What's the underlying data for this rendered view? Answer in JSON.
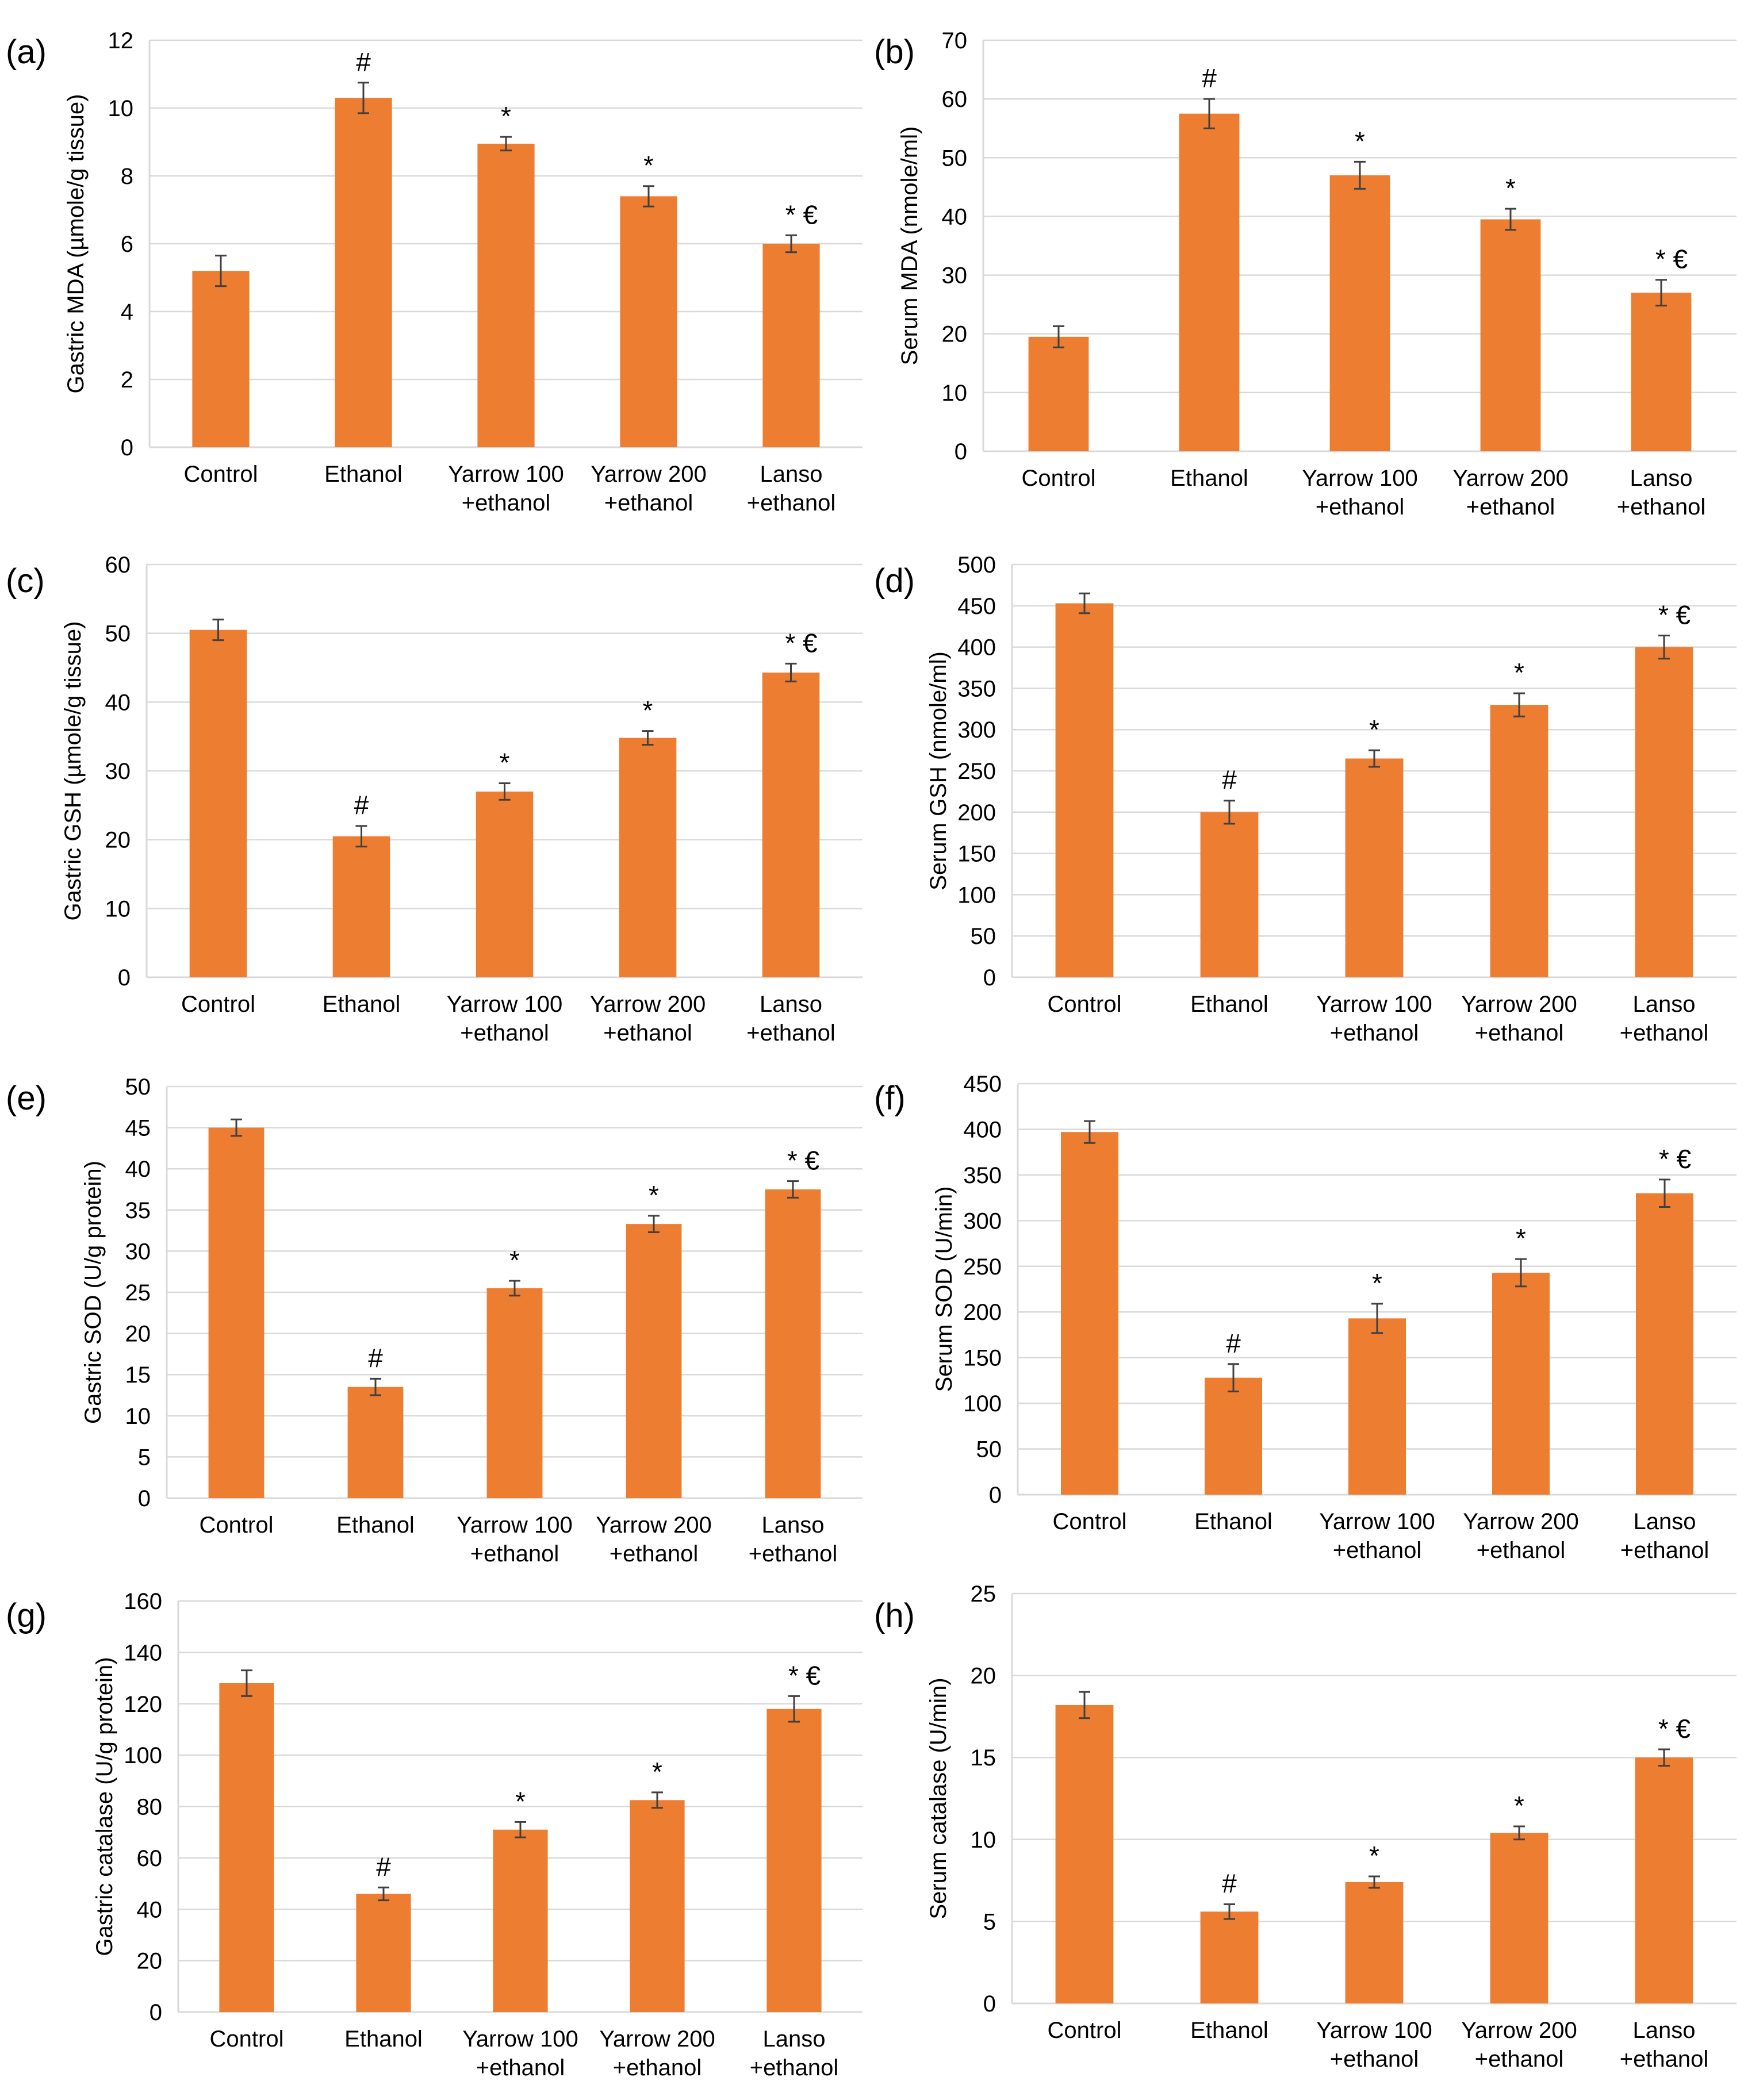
{
  "figure": {
    "categories": [
      "Control",
      "Ethanol",
      "Yarrow 100\n+ethanol",
      "Yarrow 200\n+ethanol",
      "Lanso\n+ethanol"
    ],
    "bar_color": "#ED7D31",
    "grid_color": "#D9D9D9",
    "text_color": "#000000"
  },
  "chart_data": [
    {
      "panel": "(a)",
      "type": "bar",
      "ylabel": "Gastric MDA (µmole/g tissue)",
      "ylim": [
        0,
        12
      ],
      "yticks": [
        0,
        2,
        4,
        6,
        8,
        10,
        12
      ],
      "values": [
        5.2,
        10.3,
        8.95,
        7.4,
        6.0
      ],
      "errors": [
        0.45,
        0.45,
        0.2,
        0.3,
        0.25
      ],
      "annotations": [
        "",
        "#",
        "*",
        "*",
        "* €"
      ]
    },
    {
      "panel": "(b)",
      "type": "bar",
      "ylabel": "Serum MDA (nmole/ml)",
      "ylim": [
        0,
        70
      ],
      "yticks": [
        0,
        10,
        20,
        30,
        40,
        50,
        60,
        70
      ],
      "values": [
        19.5,
        57.5,
        47,
        39.5,
        27
      ],
      "errors": [
        1.8,
        2.5,
        2.3,
        1.8,
        2.2
      ],
      "annotations": [
        "",
        "#",
        "*",
        "*",
        "* €"
      ]
    },
    {
      "panel": "(c)",
      "type": "bar",
      "ylabel": "Gastric GSH (µmole/g tissue)",
      "ylim": [
        0,
        60
      ],
      "yticks": [
        0,
        10,
        20,
        30,
        40,
        50,
        60
      ],
      "values": [
        50.5,
        20.5,
        27,
        34.8,
        44.3
      ],
      "errors": [
        1.5,
        1.5,
        1.2,
        1.0,
        1.3
      ],
      "annotations": [
        "",
        "#",
        "*",
        "*",
        "* €"
      ]
    },
    {
      "panel": "(d)",
      "type": "bar",
      "ylabel": "Serum GSH (nmole/ml)",
      "ylim": [
        0,
        500
      ],
      "yticks": [
        0,
        50,
        100,
        150,
        200,
        250,
        300,
        350,
        400,
        450,
        500
      ],
      "values": [
        453,
        200,
        265,
        330,
        400
      ],
      "errors": [
        12,
        14,
        10,
        14,
        14
      ],
      "annotations": [
        "",
        "#",
        "*",
        "*",
        "* €"
      ]
    },
    {
      "panel": "(e)",
      "type": "bar",
      "ylabel": "Gastric SOD (U/g protein)",
      "ylim": [
        0,
        50
      ],
      "yticks": [
        0,
        5,
        10,
        15,
        20,
        25,
        30,
        35,
        40,
        45,
        50
      ],
      "values": [
        45,
        13.5,
        25.5,
        33.3,
        37.5
      ],
      "errors": [
        1.0,
        1.0,
        0.9,
        1.0,
        1.0
      ],
      "annotations": [
        "",
        "#",
        "*",
        "*",
        "* €"
      ]
    },
    {
      "panel": "(f)",
      "type": "bar",
      "ylabel": "Serum SOD (U/min)",
      "ylim": [
        0,
        450
      ],
      "yticks": [
        0,
        50,
        100,
        150,
        200,
        250,
        300,
        350,
        400,
        450
      ],
      "values": [
        397,
        128,
        193,
        243,
        330
      ],
      "errors": [
        12,
        15,
        16,
        15,
        15
      ],
      "annotations": [
        "",
        "#",
        "*",
        "*",
        "* €"
      ]
    },
    {
      "panel": "(g)",
      "type": "bar",
      "ylabel": "Gastric catalase (U/g protein)",
      "ylim": [
        0,
        160
      ],
      "yticks": [
        0,
        20,
        40,
        60,
        80,
        100,
        120,
        140,
        160
      ],
      "values": [
        128,
        46,
        71,
        82.5,
        118
      ],
      "errors": [
        5,
        2.5,
        3,
        3,
        5
      ],
      "annotations": [
        "",
        "#",
        "*",
        "*",
        "* €"
      ]
    },
    {
      "panel": "(h)",
      "type": "bar",
      "ylabel": "Serum catalase (U/min)",
      "ylim": [
        0,
        25
      ],
      "yticks": [
        0,
        5,
        10,
        15,
        20,
        25
      ],
      "values": [
        18.2,
        5.6,
        7.4,
        10.4,
        15.0
      ],
      "errors": [
        0.8,
        0.45,
        0.35,
        0.4,
        0.5
      ],
      "annotations": [
        "",
        "#",
        "*",
        "*",
        "* €"
      ]
    }
  ]
}
